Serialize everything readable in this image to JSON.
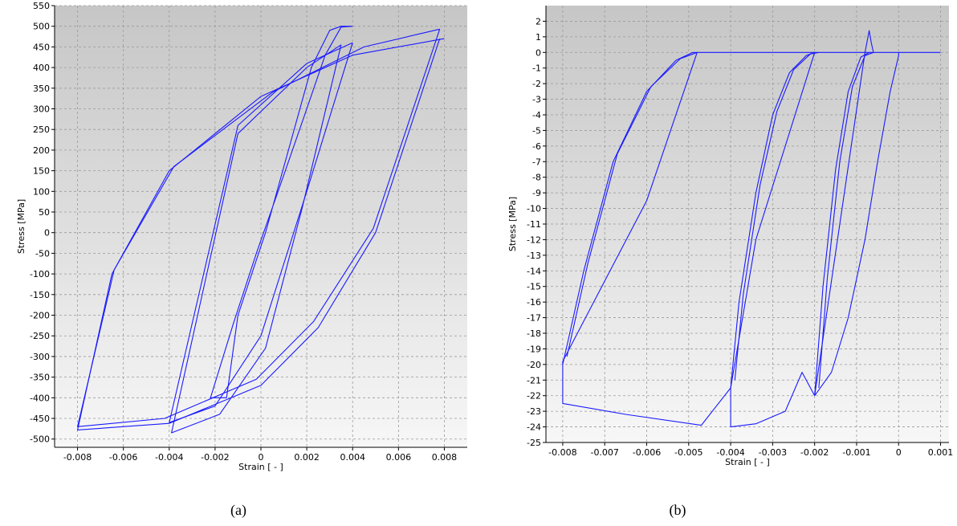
{
  "colors": {
    "line": "#1a1aff",
    "grid": "#9a9a9a",
    "plot_bg_top": "#c6c6c6",
    "plot_bg_bottom": "#f7f7f7"
  },
  "captions": [
    "(a)",
    "(b)"
  ],
  "chart_data": [
    {
      "type": "line",
      "title": "",
      "xlabel": "Strain [ - ]",
      "ylabel": "Stress [MPa]",
      "xlim": [
        -0.009,
        0.009
      ],
      "ylim": [
        -520,
        550
      ],
      "xticks": [
        -0.008,
        -0.006,
        -0.004,
        -0.002,
        0,
        0.002,
        0.004,
        0.006,
        0.008
      ],
      "xtick_labels": [
        "-0.008",
        "-0.006",
        "-0.004",
        "-0.002",
        "0",
        "0.002",
        "0.004",
        "0.006",
        "0.008"
      ],
      "yticks": [
        550,
        500,
        450,
        400,
        350,
        300,
        250,
        200,
        150,
        100,
        50,
        0,
        -50,
        -100,
        -150,
        -200,
        -250,
        -300,
        -350,
        -400,
        -450,
        -500
      ],
      "ytick_labels": [
        "550",
        "500",
        "450",
        "400",
        "350",
        "300",
        "250",
        "200",
        "150",
        "100",
        "50",
        "0",
        "-50",
        "-100",
        "-150",
        "-200",
        "-250",
        "-300",
        "-350",
        "-400",
        "-450",
        "-500"
      ],
      "grid": true,
      "series": [
        {
          "x": [
            0.008,
            0.004,
            0.0,
            -0.004,
            -0.0065,
            -0.008,
            -0.004,
            0.0,
            0.0025,
            0.005,
            0.0078
          ],
          "y": [
            470,
            430,
            330,
            150,
            -100,
            -478,
            -462,
            -370,
            -230,
            0,
            470
          ]
        },
        {
          "x": [
            0.0078,
            0.0045,
            0.0005,
            -0.0038,
            -0.0064,
            -0.008,
            -0.0042,
            -0.0002,
            0.0023,
            0.0049,
            0.0078
          ],
          "y": [
            493,
            450,
            340,
            160,
            -90,
            -470,
            -450,
            -355,
            -215,
            10,
            493
          ]
        },
        {
          "x": [
            0.004,
            0.002,
            -0.001,
            -0.004,
            -0.002,
            0.0,
            0.002,
            0.004
          ],
          "y": [
            460,
            410,
            260,
            -460,
            -420,
            -250,
            100,
            460
          ]
        },
        {
          "x": [
            0.0035,
            0.002,
            -0.001,
            -0.0039,
            -0.0018,
            0.0002,
            0.0018,
            0.0035
          ],
          "y": [
            455,
            400,
            240,
            -485,
            -440,
            -280,
            60,
            455
          ]
        },
        {
          "x": [
            0.004,
            0.0035,
            0.003,
            0.0022,
            0.0012,
            0.0002,
            -0.001,
            -0.0015,
            -0.0022,
            -0.0012,
            -0.0002,
            0.001,
            0.002,
            0.0028,
            0.0035,
            0.004
          ],
          "y": [
            500,
            500,
            490,
            400,
            200,
            0,
            -200,
            -400,
            -400,
            -220,
            -50,
            140,
            300,
            430,
            498,
            500
          ]
        }
      ]
    },
    {
      "type": "line",
      "title": "",
      "xlabel": "Strain [ - ]",
      "ylabel": "Stress [MPa]",
      "xlim": [
        -0.0084,
        0.0012
      ],
      "ylim": [
        -25,
        3
      ],
      "xticks": [
        -0.008,
        -0.007,
        -0.006,
        -0.005,
        -0.004,
        -0.003,
        -0.002,
        -0.001,
        0,
        0.001
      ],
      "xtick_labels": [
        "-0.008",
        "-0.007",
        "-0.006",
        "-0.005",
        "-0.004",
        "-0.003",
        "-0.002",
        "-0.001",
        "0",
        "0.001"
      ],
      "yticks": [
        2,
        1,
        0,
        -1,
        -2,
        -3,
        -4,
        -5,
        -6,
        -7,
        -8,
        -9,
        -10,
        -11,
        -12,
        -13,
        -14,
        -15,
        -16,
        -17,
        -18,
        -19,
        -20,
        -21,
        -22,
        -23,
        -24,
        -25
      ],
      "ytick_labels": [
        "2",
        "1",
        "0",
        "-1",
        "-2",
        "-3",
        "-4",
        "-5",
        "-6",
        "-7",
        "-8",
        "-9",
        "-10",
        "-11",
        "-12",
        "-13",
        "-14",
        "-15",
        "-16",
        "-17",
        "-18",
        "-19",
        "-20",
        "-21",
        "-22",
        "-23",
        "-24",
        "-25"
      ],
      "grid": true,
      "series": [
        {
          "x": [
            -0.008,
            -0.0075,
            -0.0068,
            -0.006,
            -0.0053,
            -0.0049,
            -0.0048,
            0.001
          ],
          "y": [
            -20,
            -14,
            -7,
            -2.5,
            -0.5,
            0,
            0,
            0
          ]
        },
        {
          "x": [
            -0.0079,
            -0.0074,
            -0.0067,
            -0.0059,
            -0.0052,
            -0.0048
          ],
          "y": [
            -19.5,
            -13.5,
            -6.5,
            -2.2,
            -0.4,
            0
          ]
        },
        {
          "x": [
            -0.008,
            -0.006,
            -0.0048
          ],
          "y": [
            -19.8,
            -9.5,
            0
          ]
        },
        {
          "x": [
            -0.008,
            -0.008,
            -0.0065,
            -0.0047,
            -0.004
          ],
          "y": [
            -19.8,
            -22.5,
            -23.2,
            -23.9,
            -21.5
          ]
        },
        {
          "x": [
            -0.004,
            -0.0038,
            -0.0034,
            -0.003,
            -0.0026,
            -0.0022,
            -0.002
          ],
          "y": [
            -21.5,
            -16,
            -9,
            -4,
            -1.3,
            -0.2,
            0
          ]
        },
        {
          "x": [
            -0.0039,
            -0.0037,
            -0.0033,
            -0.0029,
            -0.0025,
            -0.0021,
            -0.0019
          ],
          "y": [
            -21,
            -15.5,
            -8.5,
            -3.8,
            -1.1,
            -0.1,
            0
          ]
        },
        {
          "x": [
            -0.004,
            -0.0034,
            -0.002
          ],
          "y": [
            -21.5,
            -12,
            0
          ]
        },
        {
          "x": [
            -0.004,
            -0.004,
            -0.0034,
            -0.0027,
            -0.0023,
            -0.002
          ],
          "y": [
            -21.5,
            -24,
            -23.8,
            -23,
            -20.5,
            -22
          ]
        },
        {
          "x": [
            -0.002,
            -0.0018,
            -0.0015,
            -0.0012,
            -0.0009,
            -0.0007
          ],
          "y": [
            -22,
            -15,
            -7.5,
            -2.5,
            -0.3,
            0
          ]
        },
        {
          "x": [
            -0.0019,
            -0.0017,
            -0.0014,
            -0.0011,
            -0.0008,
            -0.0006
          ],
          "y": [
            -21.5,
            -14.5,
            -7,
            -2.2,
            -0.2,
            0
          ]
        },
        {
          "x": [
            -0.002,
            -0.0014,
            -0.0008
          ],
          "y": [
            -22,
            -11,
            0
          ]
        },
        {
          "x": [
            -0.002,
            -0.0016,
            -0.0012,
            -0.0008,
            -0.0005,
            -0.0002,
            0.0,
            0.0
          ],
          "y": [
            -22,
            -20.5,
            -17,
            -12,
            -7,
            -2.5,
            -0.2,
            0
          ]
        },
        {
          "x": [
            -0.0008,
            -0.0007,
            -0.00065,
            -0.0006
          ],
          "y": [
            0,
            1.4,
            0.6,
            0
          ]
        }
      ]
    }
  ]
}
